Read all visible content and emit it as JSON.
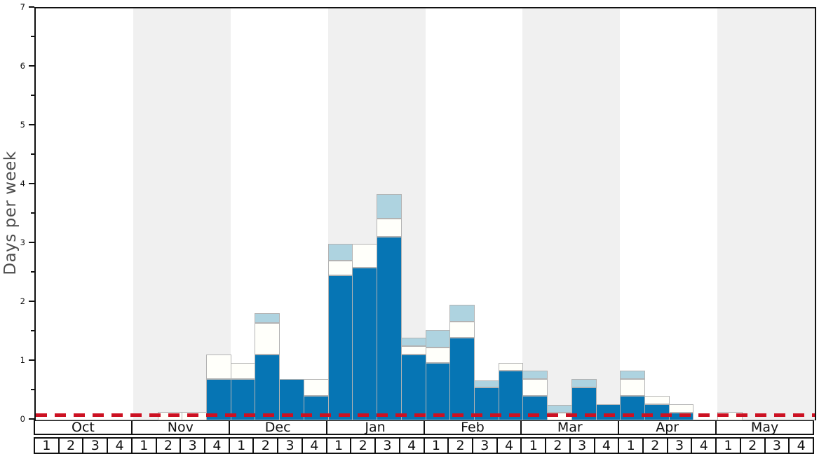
{
  "chart_data": {
    "type": "bar",
    "stacked": true,
    "title": "",
    "xlabel": "",
    "ylabel": "Days per week",
    "ylim": [
      0,
      7
    ],
    "yticks": [
      "0",
      "1",
      "2",
      "3",
      "4",
      "5",
      "6",
      "7"
    ],
    "minor_tick_step": 0.5,
    "grid": false,
    "legend": "none",
    "months": [
      "Oct",
      "Nov",
      "Dec",
      "Jan",
      "Feb",
      "Mar",
      "Apr",
      "May"
    ],
    "week_labels": [
      "1",
      "2",
      "3",
      "4"
    ],
    "weeks_per_month": 4,
    "categories": [
      "Oct-1",
      "Oct-2",
      "Oct-3",
      "Oct-4",
      "Nov-1",
      "Nov-2",
      "Nov-3",
      "Nov-4",
      "Dec-1",
      "Dec-2",
      "Dec-3",
      "Dec-4",
      "Jan-1",
      "Jan-2",
      "Jan-3",
      "Jan-4",
      "Feb-1",
      "Feb-2",
      "Feb-3",
      "Feb-4",
      "Mar-1",
      "Mar-2",
      "Mar-3",
      "Mar-4",
      "Apr-1",
      "Apr-2",
      "Apr-3",
      "Apr-4",
      "May-1",
      "May-2",
      "May-3",
      "May-4"
    ],
    "series": [
      {
        "name": "dark-blue",
        "color": "#0675b4",
        "values": [
          0,
          0,
          0,
          0,
          0,
          0,
          0,
          0.7,
          0.7,
          1.12,
          0.7,
          0.42,
          2.46,
          2.59,
          3.12,
          1.12,
          0.98,
          1.4,
          0.56,
          0.84,
          0.42,
          0,
          0.56,
          0.27,
          0.42,
          0.27,
          0.13,
          0,
          0,
          0,
          0,
          0
        ]
      },
      {
        "name": "off-white",
        "color": "#fffffa",
        "values": [
          0,
          0,
          0,
          0,
          0,
          0.14,
          0.14,
          0.42,
          0.28,
          0.54,
          0,
          0.28,
          0.26,
          0.41,
          0.31,
          0.14,
          0.26,
          0.28,
          0,
          0.14,
          0.28,
          0.13,
          0,
          0,
          0.28,
          0.15,
          0.14,
          0,
          0.14,
          0,
          0,
          0
        ]
      },
      {
        "name": "light-blue",
        "color": "#aed3e0",
        "values": [
          0,
          0,
          0,
          0,
          0,
          0,
          0,
          0,
          0,
          0.16,
          0,
          0,
          0.28,
          0,
          0.42,
          0.14,
          0.3,
          0.28,
          0.12,
          0,
          0.14,
          0.13,
          0.14,
          0,
          0.14,
          0,
          0,
          0,
          0,
          0,
          0,
          0
        ]
      }
    ],
    "reference_line": {
      "y": 0.05,
      "color": "#cc1122",
      "style": "dashed"
    },
    "plot_style": {
      "band_colors": [
        "#ffffff",
        "#f0f0f0"
      ],
      "bar_border_color": "#b3b3b3",
      "baseline_color": "#9a9a9a",
      "axis_color": "#111111"
    }
  }
}
